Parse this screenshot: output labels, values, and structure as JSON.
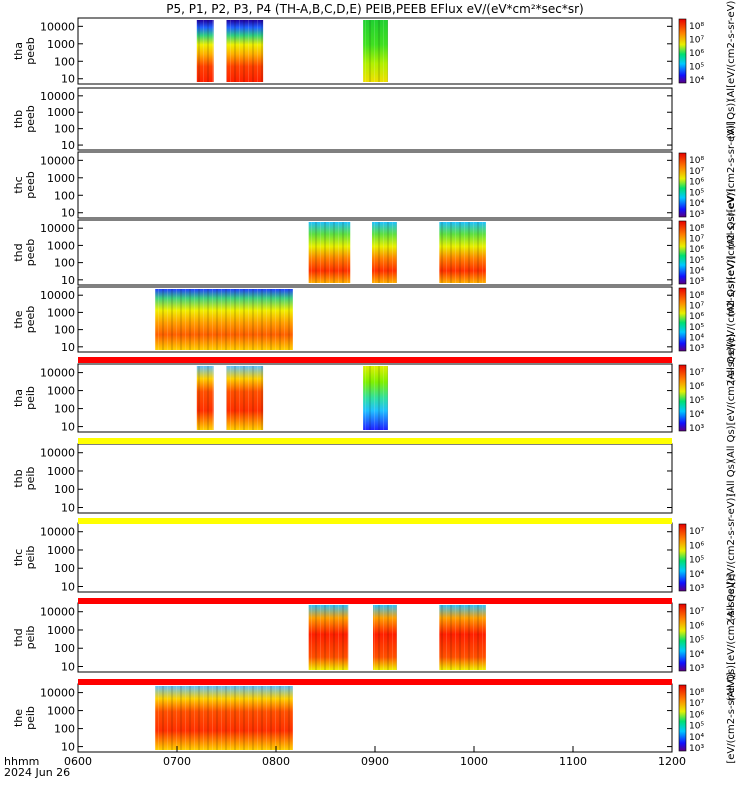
{
  "title": "P5, P1, P2, P3, P4 (TH-A,B,C,D,E) PEIB,PEEB EFlux eV/(eV*cm²*sec*sr)",
  "xaxis": {
    "label": "hhmm",
    "date": "2024 Jun 26",
    "ticks": [
      "0600",
      "0700",
      "0800",
      "0900",
      "1000",
      "1100",
      "1200"
    ],
    "range_hours": [
      6,
      12
    ]
  },
  "y_tick_labels": [
    "10",
    "100",
    "1000",
    "10000"
  ],
  "chart_data": [
    {
      "type": "heatmap",
      "label": "thb\npeeb",
      "colorbar_label": "(All Qs))",
      "yrange_eV": [
        5,
        30000
      ],
      "log": true,
      "segments": []
    },
    {
      "type": "heatmap",
      "label": "thc\npeeb",
      "colorbar_label": "(All Qs)[eV/(cm2-s-sr-eV)]",
      "yrange_eV": [
        5,
        30000
      ],
      "log": true,
      "segments": []
    },
    {
      "type": "heatmap",
      "label": "thd\npeeb",
      "colorbar_label": "(All Qs)[eV/(cm2-s-sr-eV)]",
      "yrange_eV": [
        5,
        30000
      ],
      "log": true,
      "segments": [
        [
          8.33,
          8.75
        ],
        [
          8.97,
          9.22
        ],
        [
          9.65,
          10.12
        ]
      ]
    },
    {
      "type": "heatmap",
      "label": "the\npeeb",
      "colorbar_label": "(All Qs)[eV/(cm2-s-sr-eV)]",
      "yrange_eV": [
        5,
        30000
      ],
      "log": true,
      "segments": [
        [
          6.78,
          8.17
        ]
      ]
    },
    {
      "type": "heatmap",
      "label": "thb\npeib",
      "colorbar_label": "(All Qs)",
      "yrange_eV": [
        5,
        30000
      ],
      "log": true,
      "segments": []
    },
    {
      "type": "heatmap",
      "label": "thc\npeib",
      "colorbar_label": "(All Qs)[eV/(cm2-s-sr-eV)]",
      "yrange_eV": [
        5,
        30000
      ],
      "log": true,
      "segments": []
    },
    {
      "type": "heatmap",
      "label": "thd\npeib",
      "colorbar_label": "(All Qs)[eV/(cm2-s-sr-eV)]",
      "yrange_eV": [
        5,
        30000
      ],
      "log": true,
      "segments": [
        [
          8.33,
          8.73
        ],
        [
          8.98,
          9.22
        ],
        [
          9.65,
          10.12
        ]
      ]
    },
    {
      "type": "heatmap",
      "label": "the\npeib",
      "colorbar_label": "(All Qs)[eV/(cm2-s-sr-eV)]",
      "yrange_eV": [
        5,
        30000
      ],
      "log": true,
      "segments": [
        [
          6.78,
          8.17
        ]
      ]
    }
  ],
  "colorbars": [
    [
      "10⁸",
      "10⁷",
      "10⁶",
      "10⁵",
      "10⁴"
    ],
    [],
    [
      "10⁸",
      "10⁷",
      "10⁶",
      "10⁵",
      "10⁴",
      "10³"
    ],
    [
      "10⁸",
      "10⁷",
      "10⁶",
      "10⁵",
      "10⁴",
      "10³"
    ],
    [
      "10⁸",
      "10⁷",
      "10⁶",
      "10⁵",
      "10⁴",
      "10³"
    ],
    [
      "10⁷",
      "10⁶",
      "10⁵",
      "10⁴",
      "10³"
    ],
    [],
    [
      "10⁷",
      "10⁶",
      "10⁵",
      "10⁴",
      "10³"
    ],
    [
      "10⁷",
      "10⁶",
      "10⁵",
      "10⁴",
      "10³"
    ],
    [
      "10⁸",
      "10⁷",
      "10⁶",
      "10⁵",
      "10⁴",
      "10³"
    ]
  ],
  "panel_labels": [
    "tha\npeeb",
    "thb\npeeb",
    "thc\npeeb",
    "thd\npeeb",
    "the\npeeb",
    "tha\npeib",
    "thb\npeib",
    "thc\npeib",
    "thd\npeib",
    "the\npeib"
  ],
  "colorbar_titles": [
    "(Al[eV/(cm2-s-sr-eV)",
    "(All Qs))",
    "(All Qs)[eV/(cm2-s-sr-eV)]",
    "(All Qs)[eV/(cm2-s-sr-eV)]",
    "(All Qs)[eV/(cm2-s-sr-eV)]",
    "(All Qs)[eV/(cm2-s-sr-eV)]",
    "(All Qs)",
    "(All Qs)[eV/(cm2-s-sr-eV)]",
    "(All Qs)[eV/(cm2-s-sr-eV)]",
    "[eV/(cm2-s-sr-eV)]"
  ],
  "panel_segments": [
    [
      [
        7.2,
        7.37
      ],
      [
        7.5,
        7.87
      ],
      [
        8.88,
        9.13
      ]
    ],
    [],
    [],
    [
      [
        8.33,
        8.75
      ],
      [
        8.97,
        9.22
      ],
      [
        9.65,
        10.12
      ]
    ],
    [
      [
        6.78,
        8.17
      ]
    ],
    [
      [
        7.2,
        7.37
      ],
      [
        7.5,
        7.87
      ],
      [
        8.88,
        9.13
      ]
    ],
    [],
    [],
    [
      [
        8.33,
        8.73
      ],
      [
        8.98,
        9.22
      ],
      [
        9.65,
        10.12
      ]
    ],
    [
      [
        6.78,
        8.17
      ]
    ]
  ],
  "separators": [
    "#ff0000",
    "#ffff00",
    "#ffff00",
    "#ff0000",
    "#ff0000"
  ],
  "colors": {
    "red_bar": "#ff0000",
    "yellow_bar": "#ffff00"
  }
}
